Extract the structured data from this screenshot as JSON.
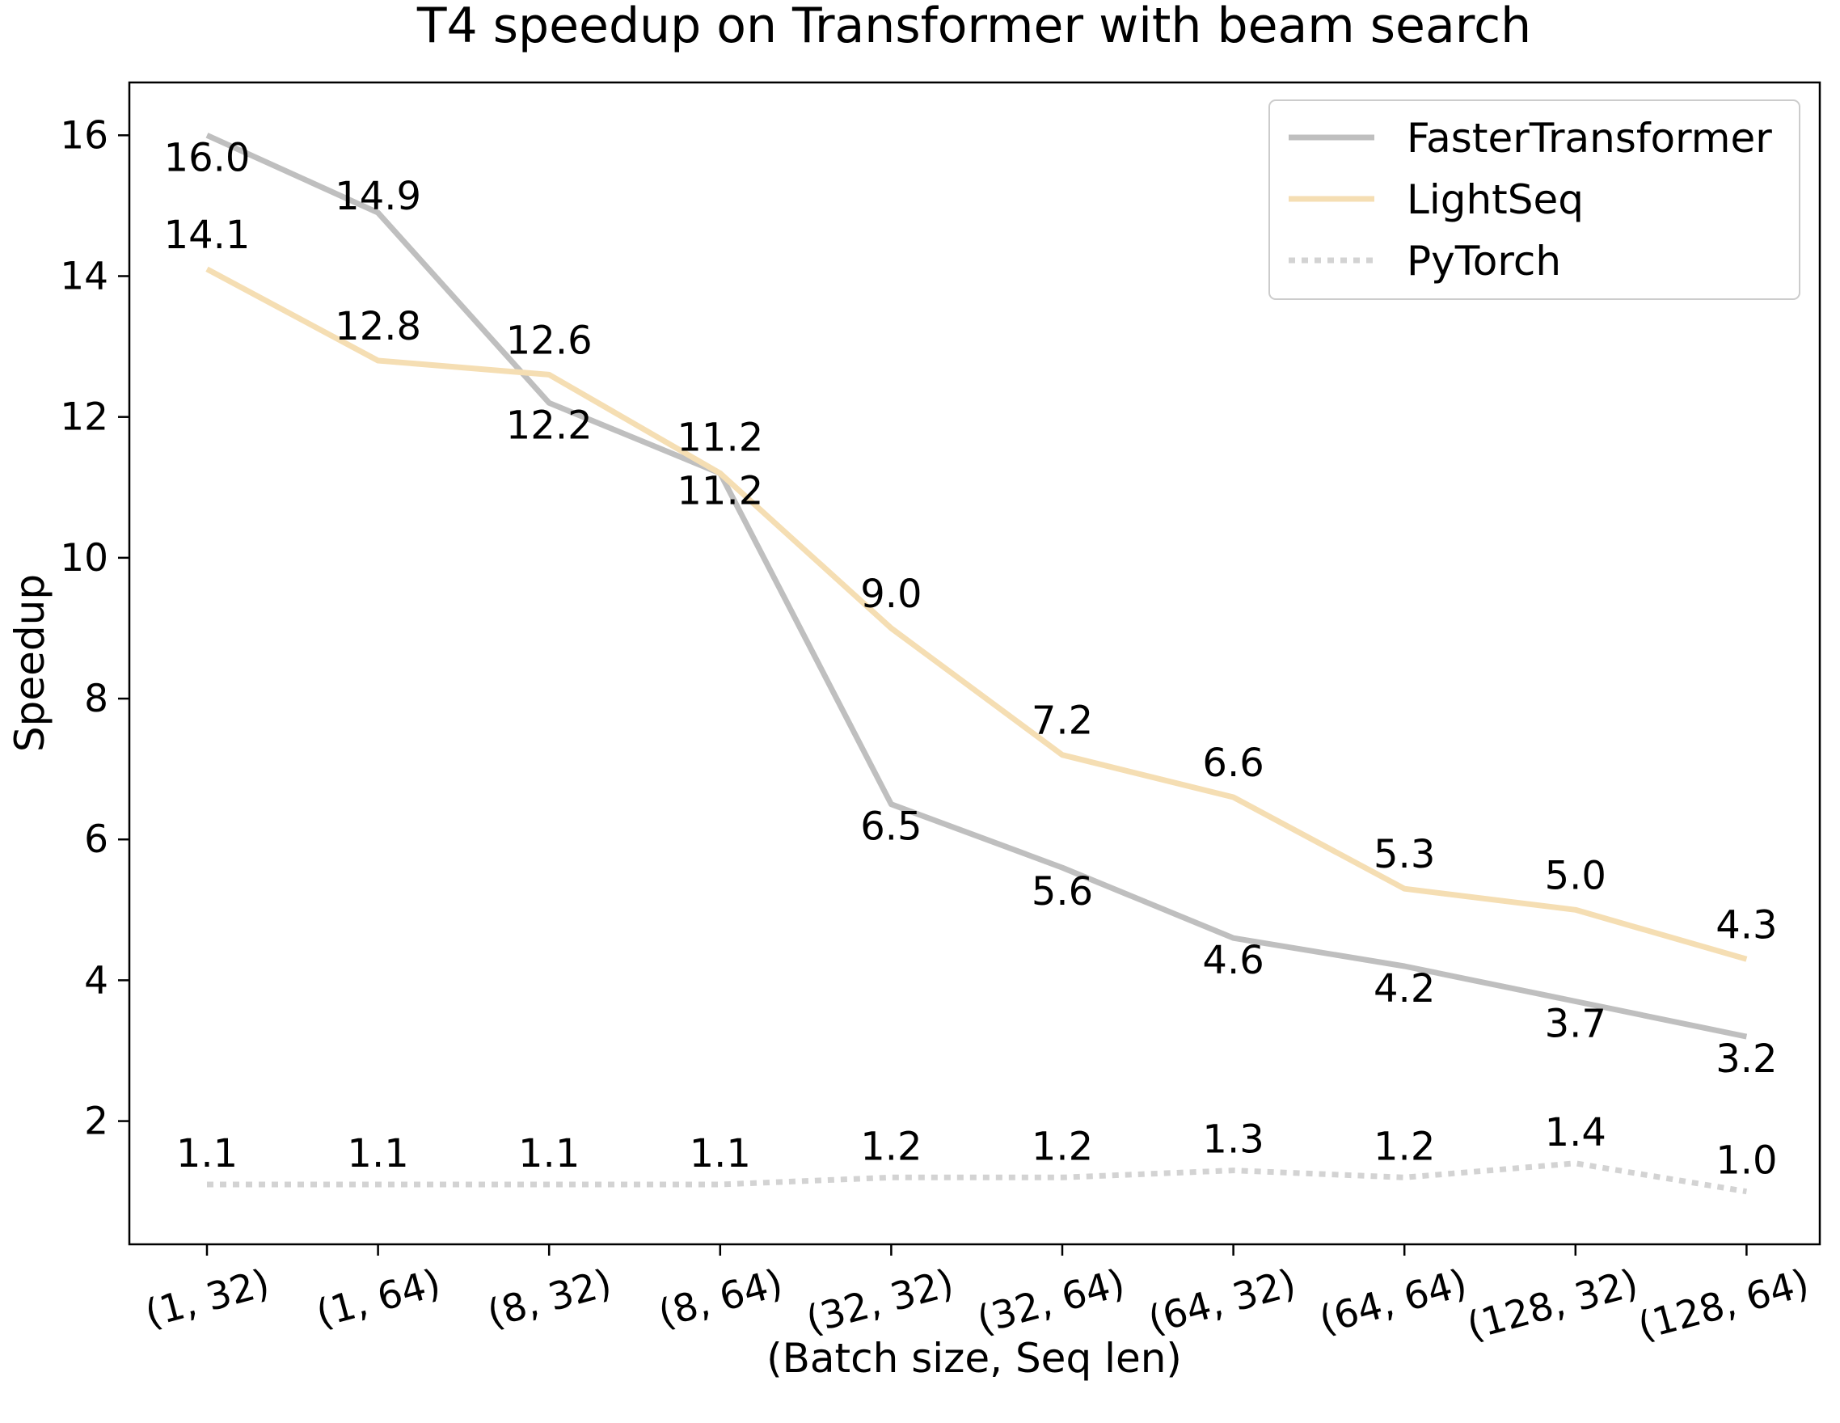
{
  "chart_data": {
    "type": "line",
    "title": "T4 speedup on Transformer with beam search",
    "xlabel": "(Batch size, Seq len)",
    "ylabel": "Speedup",
    "categories": [
      "(1, 32)",
      "(1, 64)",
      "(8, 32)",
      "(8, 64)",
      "(32, 32)",
      "(32, 64)",
      "(64, 32)",
      "(64, 64)",
      "(128, 32)",
      "(128, 64)"
    ],
    "ylim": [
      0.25,
      16.75
    ],
    "yticks": [
      2,
      4,
      6,
      8,
      10,
      12,
      14,
      16
    ],
    "grid": false,
    "legend_position": "top-right",
    "series": [
      {
        "name": "FasterTransformer",
        "color": "#bfbfbf",
        "linestyle": "solid",
        "values": [
          16.0,
          14.9,
          12.2,
          11.2,
          6.5,
          5.6,
          4.6,
          4.2,
          3.7,
          3.2
        ],
        "labels": [
          "16.0",
          "14.9",
          "12.2",
          "11.2",
          "6.5",
          "5.6",
          "4.6",
          "4.2",
          "3.7",
          "3.2"
        ]
      },
      {
        "name": "LightSeq",
        "color": "#f5deb3",
        "linestyle": "solid",
        "values": [
          14.1,
          12.8,
          12.6,
          11.2,
          9.0,
          7.2,
          6.6,
          5.3,
          5.0,
          4.3
        ],
        "labels": [
          "14.1",
          "12.8",
          "12.6",
          "11.2",
          "9.0",
          "7.2",
          "6.6",
          "5.3",
          "5.0",
          "4.3"
        ]
      },
      {
        "name": "PyTorch",
        "color": "#d3d3d3",
        "linestyle": "dotted",
        "values": [
          1.1,
          1.1,
          1.1,
          1.1,
          1.2,
          1.2,
          1.3,
          1.2,
          1.4,
          1.0
        ],
        "labels": [
          "1.1",
          "1.1",
          "1.1",
          "1.1",
          "1.2",
          "1.2",
          "1.3",
          "1.2",
          "1.4",
          "1.0"
        ]
      }
    ]
  }
}
